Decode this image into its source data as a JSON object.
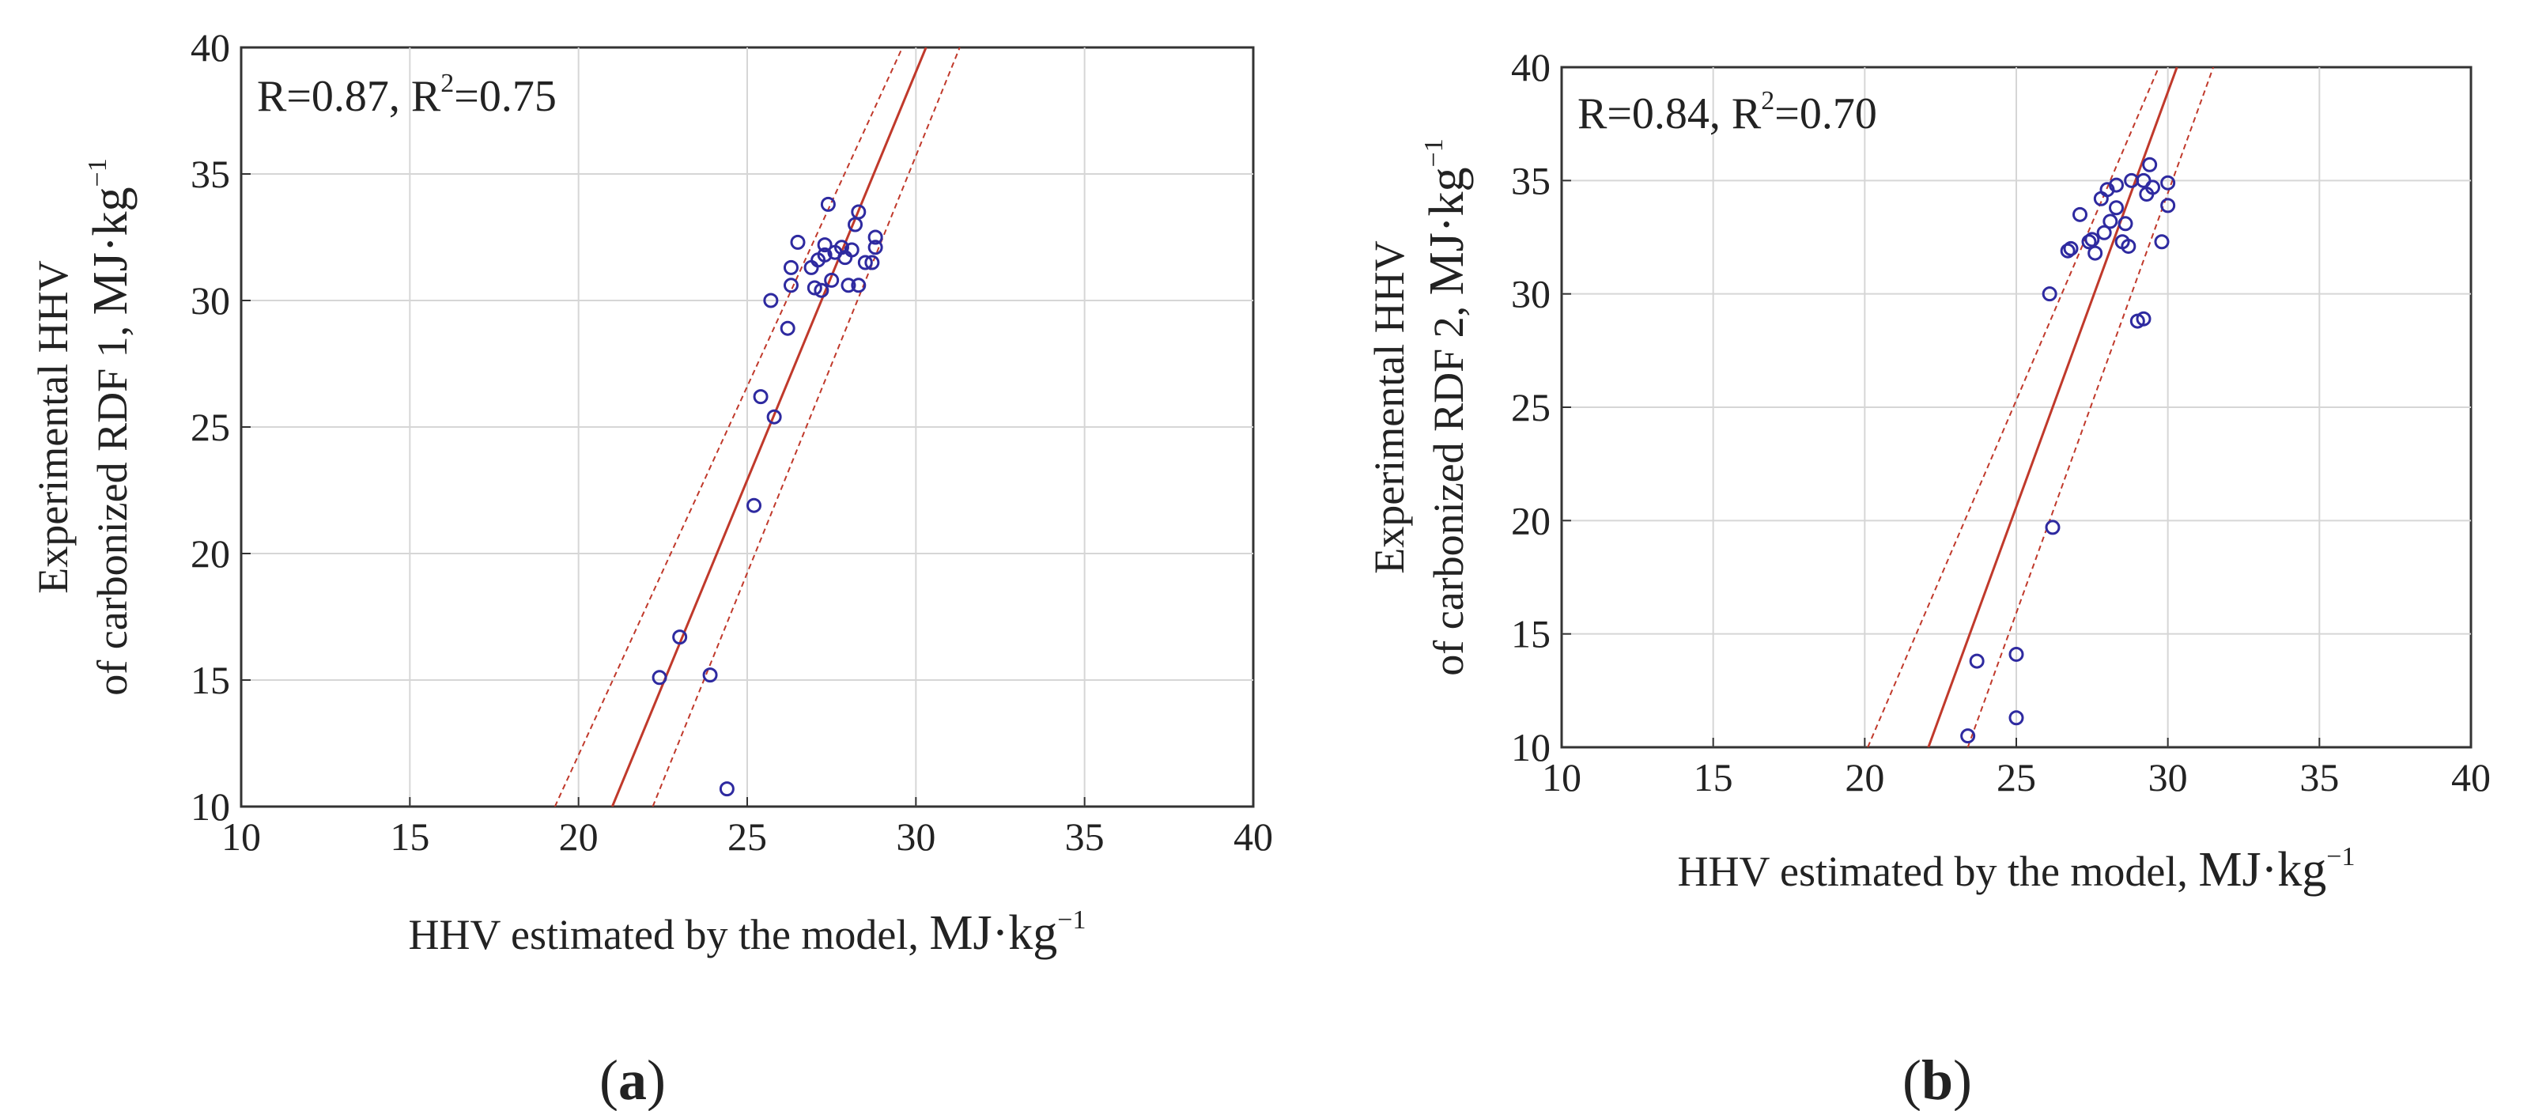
{
  "figure": {
    "panels": [
      {
        "panel_label": "a",
        "annotation": {
          "r_text": "R=0.87, R",
          "r2_sup": "2",
          "r2_value": "=0.75"
        },
        "xlabel": {
          "text": "HHV estimated by the model, ",
          "unit": "MJ·kg",
          "unit_sup": "−1"
        },
        "ylabel": {
          "line1": "Experimental HHV",
          "line2": "of carbonized RDF 1, ",
          "unit": "MJ·kg",
          "unit_sup": "−1"
        }
      },
      {
        "panel_label": "b",
        "annotation": {
          "r_text": "R=0.84, R",
          "r2_sup": "2",
          "r2_value": "=0.70"
        },
        "xlabel": {
          "text": "HHV estimated by the model, ",
          "unit": "MJ·kg",
          "unit_sup": "−1"
        },
        "ylabel": {
          "line1": "Experimental HHV",
          "line2": "of carbonized RDF 2, ",
          "unit": "MJ·kg",
          "unit_sup": "−1"
        }
      }
    ]
  },
  "colors": {
    "points": "#2e2aa0",
    "fit": "#c0392b",
    "ci": "#c0392b",
    "grid": "#d6d6d6",
    "frame": "#333333"
  },
  "chart_data": [
    {
      "type": "scatter",
      "title": "(a)",
      "xlabel": "HHV estimated by the model, MJ·kg−1",
      "ylabel": "Experimental HHV of carbonized RDF 1, MJ·kg−1",
      "xlim": [
        10,
        40
      ],
      "ylim": [
        10,
        40
      ],
      "xticks": [
        10,
        15,
        20,
        25,
        30,
        35,
        40
      ],
      "yticks": [
        10,
        15,
        20,
        25,
        30,
        35,
        40
      ],
      "grid": true,
      "annotation": "R=0.87, R2=0.75",
      "fit_line": {
        "x": [
          21.0,
          30.3
        ],
        "y": [
          10,
          40
        ]
      },
      "ci_upper": {
        "x": [
          19.3,
          29.6
        ],
        "y": [
          10,
          40
        ]
      },
      "ci_lower": {
        "x": [
          22.2,
          31.3
        ],
        "y": [
          10,
          40
        ]
      },
      "points": [
        {
          "x": 22.4,
          "y": 15.1
        },
        {
          "x": 23.0,
          "y": 16.7
        },
        {
          "x": 23.9,
          "y": 15.2
        },
        {
          "x": 24.4,
          "y": 10.7
        },
        {
          "x": 25.2,
          "y": 21.9
        },
        {
          "x": 25.4,
          "y": 26.2
        },
        {
          "x": 25.8,
          "y": 25.4
        },
        {
          "x": 25.7,
          "y": 30.0
        },
        {
          "x": 26.2,
          "y": 28.9
        },
        {
          "x": 26.3,
          "y": 30.6
        },
        {
          "x": 26.3,
          "y": 31.3
        },
        {
          "x": 26.5,
          "y": 32.3
        },
        {
          "x": 26.9,
          "y": 31.3
        },
        {
          "x": 27.0,
          "y": 30.5
        },
        {
          "x": 27.1,
          "y": 31.6
        },
        {
          "x": 27.2,
          "y": 30.4
        },
        {
          "x": 27.3,
          "y": 31.8
        },
        {
          "x": 27.3,
          "y": 32.2
        },
        {
          "x": 27.4,
          "y": 33.8
        },
        {
          "x": 27.5,
          "y": 30.8
        },
        {
          "x": 27.6,
          "y": 31.9
        },
        {
          "x": 27.8,
          "y": 32.1
        },
        {
          "x": 27.9,
          "y": 31.7
        },
        {
          "x": 28.0,
          "y": 30.6
        },
        {
          "x": 28.1,
          "y": 32.0
        },
        {
          "x": 28.2,
          "y": 33.0
        },
        {
          "x": 28.3,
          "y": 33.5
        },
        {
          "x": 28.3,
          "y": 30.6
        },
        {
          "x": 28.5,
          "y": 31.5
        },
        {
          "x": 28.7,
          "y": 31.5
        },
        {
          "x": 28.8,
          "y": 32.1
        },
        {
          "x": 28.8,
          "y": 32.5
        }
      ]
    },
    {
      "type": "scatter",
      "title": "(b)",
      "xlabel": "HHV estimated by the model, MJ·kg−1",
      "ylabel": "Experimental HHV of carbonized RDF 2, MJ·kg−1",
      "xlim": [
        10,
        40
      ],
      "ylim": [
        10,
        40
      ],
      "xticks": [
        10,
        15,
        20,
        25,
        30,
        35,
        40
      ],
      "yticks": [
        10,
        15,
        20,
        25,
        30,
        35,
        40
      ],
      "grid": true,
      "annotation": "R=0.84, R2=0.70",
      "fit_line": {
        "x": [
          22.1,
          30.3
        ],
        "y": [
          10,
          40
        ]
      },
      "ci_upper": {
        "x": [
          20.1,
          29.7
        ],
        "y": [
          10,
          40
        ]
      },
      "ci_lower": {
        "x": [
          23.4,
          31.5
        ],
        "y": [
          10,
          40
        ]
      },
      "points": [
        {
          "x": 23.4,
          "y": 10.5
        },
        {
          "x": 23.7,
          "y": 13.8
        },
        {
          "x": 25.0,
          "y": 11.3
        },
        {
          "x": 25.0,
          "y": 14.1
        },
        {
          "x": 26.2,
          "y": 19.7
        },
        {
          "x": 26.1,
          "y": 30.0
        },
        {
          "x": 26.7,
          "y": 31.9
        },
        {
          "x": 26.8,
          "y": 32.0
        },
        {
          "x": 27.1,
          "y": 33.5
        },
        {
          "x": 27.4,
          "y": 32.3
        },
        {
          "x": 27.5,
          "y": 32.4
        },
        {
          "x": 27.6,
          "y": 31.8
        },
        {
          "x": 27.8,
          "y": 34.2
        },
        {
          "x": 27.9,
          "y": 32.7
        },
        {
          "x": 28.0,
          "y": 34.6
        },
        {
          "x": 28.1,
          "y": 33.2
        },
        {
          "x": 28.3,
          "y": 34.8
        },
        {
          "x": 28.3,
          "y": 33.8
        },
        {
          "x": 28.5,
          "y": 32.3
        },
        {
          "x": 28.6,
          "y": 33.1
        },
        {
          "x": 28.7,
          "y": 32.1
        },
        {
          "x": 28.8,
          "y": 35.0
        },
        {
          "x": 29.0,
          "y": 28.8
        },
        {
          "x": 29.2,
          "y": 28.9
        },
        {
          "x": 29.2,
          "y": 35.0
        },
        {
          "x": 29.3,
          "y": 34.4
        },
        {
          "x": 29.4,
          "y": 35.7
        },
        {
          "x": 29.5,
          "y": 34.7
        },
        {
          "x": 29.8,
          "y": 32.3
        },
        {
          "x": 30.0,
          "y": 33.9
        },
        {
          "x": 30.0,
          "y": 34.9
        }
      ]
    }
  ]
}
